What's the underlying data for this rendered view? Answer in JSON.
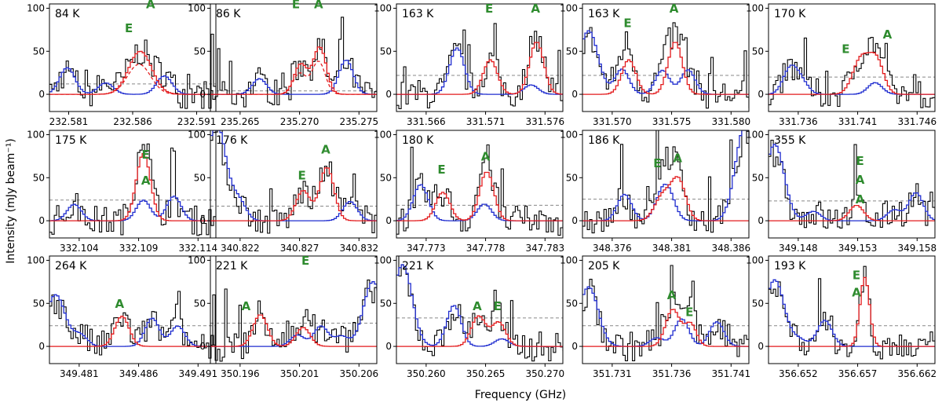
{
  "figure": {
    "ylabel": "Intensity (mJy beam⁻¹)",
    "xlabel": "Frequency (GHz)"
  },
  "colors": {
    "observed": "#000000",
    "model": "#e31a1c",
    "other": "#1f2ccf",
    "annotation": "#2e8b2e",
    "threshold": "#888888"
  },
  "chart_data": [
    {
      "type": "line",
      "temp": "84 K",
      "xticks": [
        "232.581",
        "232.586",
        "232.591"
      ],
      "tickvals": [
        232.581,
        232.586,
        232.591
      ],
      "xlim": [
        232.5795,
        232.5925
      ],
      "ylim": [
        -20,
        105
      ],
      "yticks": [
        "0",
        "50",
        "100"
      ],
      "threshold": 12,
      "peaks": [
        {
          "x": 232.5865,
          "amp": 50,
          "w": 0.0009
        }
      ],
      "dashed_model": true,
      "labels": [
        {
          "text": "E",
          "x": 232.5857,
          "y": 72
        },
        {
          "text": "A",
          "x": 232.5874,
          "y": 110
        }
      ]
    },
    {
      "type": "line",
      "temp": "86 K",
      "xticks": [
        "235.265",
        "235.270",
        "235.275"
      ],
      "tickvals": [
        235.265,
        235.27,
        235.275
      ],
      "xlim": [
        235.2625,
        235.2765
      ],
      "ylim": [
        -20,
        105
      ],
      "yticks": [
        "0",
        "50",
        "100"
      ],
      "threshold": 4,
      "peaks": [
        {
          "x": 235.27,
          "amp": 35,
          "w": 0.00055
        },
        {
          "x": 235.2716,
          "amp": 55,
          "w": 0.00055
        }
      ],
      "dashed_model": true,
      "labels": [
        {
          "text": "E",
          "x": 235.2697,
          "y": 140
        },
        {
          "text": "A",
          "x": 235.2716,
          "y": 160
        }
      ]
    },
    {
      "type": "line",
      "temp": "163 K",
      "xticks": [
        "331.566",
        "331.571",
        "331.576"
      ],
      "tickvals": [
        331.566,
        331.571,
        331.576
      ],
      "xlim": [
        331.5635,
        331.5775
      ],
      "ylim": [
        -20,
        105
      ],
      "yticks": [
        "0",
        "50",
        "100"
      ],
      "threshold": 22,
      "peaks": [
        {
          "x": 331.5713,
          "amp": 40,
          "w": 0.0006
        },
        {
          "x": 331.5752,
          "amp": 61,
          "w": 0.0006
        }
      ],
      "labels": [
        {
          "text": "E",
          "x": 331.5713,
          "y": 95
        },
        {
          "text": "A",
          "x": 331.5752,
          "y": 95
        }
      ]
    },
    {
      "type": "line",
      "temp": "163 K",
      "xticks": [
        "331.570",
        "331.575",
        "331.580"
      ],
      "tickvals": [
        331.57,
        331.575,
        331.58
      ],
      "xlim": [
        331.5675,
        331.5815
      ],
      "ylim": [
        -20,
        105
      ],
      "yticks": [
        "0",
        "50",
        "100"
      ],
      "threshold": 22,
      "peaks": [
        {
          "x": 331.5713,
          "amp": 40,
          "w": 0.0006
        },
        {
          "x": 331.5752,
          "amp": 61,
          "w": 0.0006
        }
      ],
      "labels": [
        {
          "text": "E",
          "x": 331.5713,
          "y": 78
        },
        {
          "text": "A",
          "x": 331.5752,
          "y": 95
        }
      ]
    },
    {
      "type": "line",
      "temp": "170 K",
      "xticks": [
        "331.736",
        "331.741",
        "331.746"
      ],
      "tickvals": [
        331.736,
        331.741,
        331.746
      ],
      "xlim": [
        331.7335,
        331.7475
      ],
      "ylim": [
        -20,
        105
      ],
      "yticks": [
        "0",
        "50",
        "100"
      ],
      "threshold": 20,
      "peaks": [
        {
          "x": 331.7412,
          "amp": 42,
          "w": 0.0007
        },
        {
          "x": 331.7425,
          "amp": 38,
          "w": 0.0006
        }
      ],
      "labels": [
        {
          "text": "E",
          "x": 331.74,
          "y": 48
        },
        {
          "text": "A",
          "x": 331.7435,
          "y": 65
        }
      ]
    },
    {
      "type": "line",
      "temp": "175 K",
      "xticks": [
        "332.104",
        "332.109",
        "332.114"
      ],
      "tickvals": [
        332.104,
        332.109,
        332.114
      ],
      "xlim": [
        332.1015,
        332.1155
      ],
      "ylim": [
        -20,
        105
      ],
      "yticks": [
        "0",
        "50",
        "100"
      ],
      "threshold": 24,
      "peaks": [
        {
          "x": 332.1093,
          "amp": 78,
          "w": 0.0006
        }
      ],
      "labels": [
        {
          "text": "E",
          "x": 332.1096,
          "y": 72
        },
        {
          "text": "A",
          "x": 332.1096,
          "y": 42
        }
      ]
    },
    {
      "type": "line",
      "temp": "176 K",
      "xticks": [
        "340.822",
        "340.827",
        "340.832"
      ],
      "tickvals": [
        340.822,
        340.827,
        340.832
      ],
      "xlim": [
        340.8195,
        340.8335
      ],
      "ylim": [
        -20,
        105
      ],
      "yticks": [
        "0",
        "50",
        "100"
      ],
      "threshold": 17,
      "peaks": [
        {
          "x": 340.8272,
          "amp": 35,
          "w": 0.0006
        },
        {
          "x": 340.8292,
          "amp": 62,
          "w": 0.0006
        }
      ],
      "labels": [
        {
          "text": "E",
          "x": 340.8272,
          "y": 48
        },
        {
          "text": "A",
          "x": 340.8292,
          "y": 78
        }
      ]
    },
    {
      "type": "line",
      "temp": "180 K",
      "xticks": [
        "347.773",
        "347.778",
        "347.783"
      ],
      "tickvals": [
        347.773,
        347.778,
        347.783
      ],
      "xlim": [
        347.7705,
        347.7845
      ],
      "ylim": [
        -20,
        105
      ],
      "yticks": [
        "0",
        "50",
        "100"
      ],
      "threshold": 18,
      "peaks": [
        {
          "x": 347.7743,
          "amp": 33,
          "w": 0.0006
        },
        {
          "x": 347.778,
          "amp": 57,
          "w": 0.0006
        }
      ],
      "labels": [
        {
          "text": "E",
          "x": 347.7743,
          "y": 55
        },
        {
          "text": "A",
          "x": 347.778,
          "y": 70
        }
      ]
    },
    {
      "type": "line",
      "temp": "186 K",
      "xticks": [
        "348.376",
        "348.381",
        "348.386"
      ],
      "tickvals": [
        348.376,
        348.381,
        348.386
      ],
      "xlim": [
        348.3735,
        348.3875
      ],
      "ylim": [
        -20,
        105
      ],
      "yticks": [
        "0",
        "50",
        "100"
      ],
      "threshold": 25,
      "peaks": [
        {
          "x": 348.3802,
          "amp": 30,
          "w": 0.0007
        },
        {
          "x": 348.3815,
          "amp": 45,
          "w": 0.0006
        }
      ],
      "labels": [
        {
          "text": "E",
          "x": 348.3798,
          "y": 62
        },
        {
          "text": "A",
          "x": 348.3815,
          "y": 68
        }
      ]
    },
    {
      "type": "line",
      "temp": "355 K",
      "xticks": [
        "349.148",
        "349.153",
        "349.158"
      ],
      "tickvals": [
        349.148,
        349.153,
        349.158
      ],
      "xlim": [
        349.1455,
        349.1595
      ],
      "ylim": [
        -20,
        105
      ],
      "yticks": [
        "0",
        "50",
        "100"
      ],
      "threshold": 23,
      "peaks": [
        {
          "x": 349.1528,
          "amp": 18,
          "w": 0.0006
        }
      ],
      "labels": [
        {
          "text": "E",
          "x": 349.1532,
          "y": 65
        },
        {
          "text": "A",
          "x": 349.1532,
          "y": 43
        },
        {
          "text": "A",
          "x": 349.1532,
          "y": 20
        }
      ]
    },
    {
      "type": "line",
      "temp": "264 K",
      "xticks": [
        "349.481",
        "349.486",
        "349.491"
      ],
      "tickvals": [
        349.481,
        349.486,
        349.491
      ],
      "xlim": [
        349.4785,
        349.4925
      ],
      "ylim": [
        -20,
        105
      ],
      "yticks": [
        "0",
        "50",
        "100"
      ],
      "threshold": 24,
      "peaks": [
        {
          "x": 349.4845,
          "amp": 35,
          "w": 0.0006
        }
      ],
      "labels": [
        {
          "text": "A",
          "x": 349.4844,
          "y": 45
        }
      ]
    },
    {
      "type": "line",
      "temp": "221 K",
      "xticks": [
        "350.196",
        "350.201",
        "350.206"
      ],
      "tickvals": [
        350.196,
        350.201,
        350.206
      ],
      "xlim": [
        350.1935,
        350.2075
      ],
      "ylim": [
        -20,
        105
      ],
      "yticks": [
        "0",
        "50",
        "100"
      ],
      "threshold": 27,
      "peaks": [
        {
          "x": 350.1976,
          "amp": 37,
          "w": 0.0006
        },
        {
          "x": 350.2012,
          "amp": 22,
          "w": 0.0006
        }
      ],
      "labels": [
        {
          "text": "A",
          "x": 350.1965,
          "y": 42
        },
        {
          "text": "E",
          "x": 350.2015,
          "y": 95
        }
      ]
    },
    {
      "type": "line",
      "temp": "221 K",
      "xticks": [
        "350.260",
        "350.265",
        "350.270"
      ],
      "tickvals": [
        350.26,
        350.265,
        350.27
      ],
      "xlim": [
        350.2575,
        350.2715
      ],
      "ylim": [
        -20,
        105
      ],
      "yticks": [
        "0",
        "50",
        "100"
      ],
      "threshold": 33,
      "peaks": [
        {
          "x": 350.2643,
          "amp": 35,
          "w": 0.0006
        },
        {
          "x": 350.266,
          "amp": 28,
          "w": 0.0006
        }
      ],
      "labels": [
        {
          "text": "A",
          "x": 350.2643,
          "y": 42
        },
        {
          "text": "E",
          "x": 350.266,
          "y": 42
        }
      ]
    },
    {
      "type": "line",
      "temp": "205 K",
      "xticks": [
        "351.731",
        "351.736",
        "351.741"
      ],
      "tickvals": [
        351.731,
        351.736,
        351.741
      ],
      "xlim": [
        351.7285,
        351.7425
      ],
      "ylim": [
        -20,
        105
      ],
      "yticks": [
        "0",
        "50",
        "100"
      ],
      "threshold": 24,
      "peaks": [
        {
          "x": 351.736,
          "amp": 43,
          "w": 0.0006
        },
        {
          "x": 351.7375,
          "amp": 26,
          "w": 0.0005
        }
      ],
      "labels": [
        {
          "text": "A",
          "x": 351.736,
          "y": 55
        },
        {
          "text": "E",
          "x": 351.7375,
          "y": 35
        }
      ]
    },
    {
      "type": "line",
      "temp": "193 K",
      "xticks": [
        "356.652",
        "356.657",
        "356.662"
      ],
      "tickvals": [
        356.652,
        356.657,
        356.662
      ],
      "xlim": [
        356.6495,
        356.6635
      ],
      "ylim": [
        -20,
        105
      ],
      "yticks": [
        "0",
        "50",
        "100"
      ],
      "threshold": 24,
      "peaks": [
        {
          "x": 356.6575,
          "amp": 80,
          "w": 0.0004
        }
      ],
      "labels": [
        {
          "text": "E",
          "x": 356.6569,
          "y": 78
        },
        {
          "text": "A",
          "x": 356.6569,
          "y": 58
        }
      ]
    }
  ]
}
